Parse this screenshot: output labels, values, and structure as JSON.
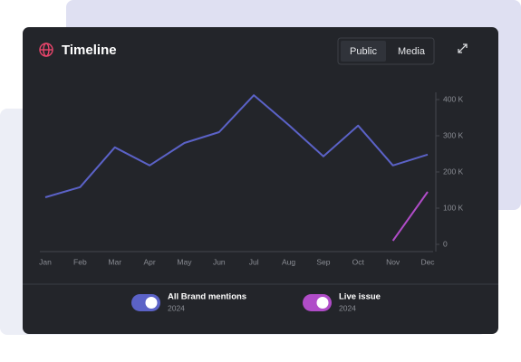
{
  "toolbar": {
    "options": [
      "Public",
      "Media"
    ]
  },
  "chart_data": {
    "type": "line",
    "title": "Timeline",
    "categories": [
      "Jan",
      "Feb",
      "Mar",
      "Apr",
      "May",
      "Jun",
      "Jul",
      "Aug",
      "Sep",
      "Oct",
      "Nov",
      "Dec"
    ],
    "series": [
      {
        "name": "All Brand mentions",
        "subtitle": "2024",
        "color": "#5b62c7",
        "values": [
          130000,
          158000,
          268000,
          218000,
          280000,
          310000,
          412000,
          330000,
          243000,
          328000,
          218000,
          248000
        ]
      },
      {
        "name": "Live issue",
        "subtitle": "2024",
        "color": "#b04cc8",
        "values": [
          null,
          null,
          null,
          null,
          null,
          null,
          null,
          null,
          null,
          null,
          10000,
          145000
        ]
      }
    ],
    "ylim": [
      -20000,
      420000
    ],
    "yticks": [
      0,
      {
        "value": 100000,
        "label": "100 K"
      },
      {
        "value": 200000,
        "label": "200 K"
      },
      {
        "value": 300000,
        "label": "300 K"
      },
      {
        "value": 400000,
        "label": "400 K"
      }
    ],
    "grid": false
  }
}
